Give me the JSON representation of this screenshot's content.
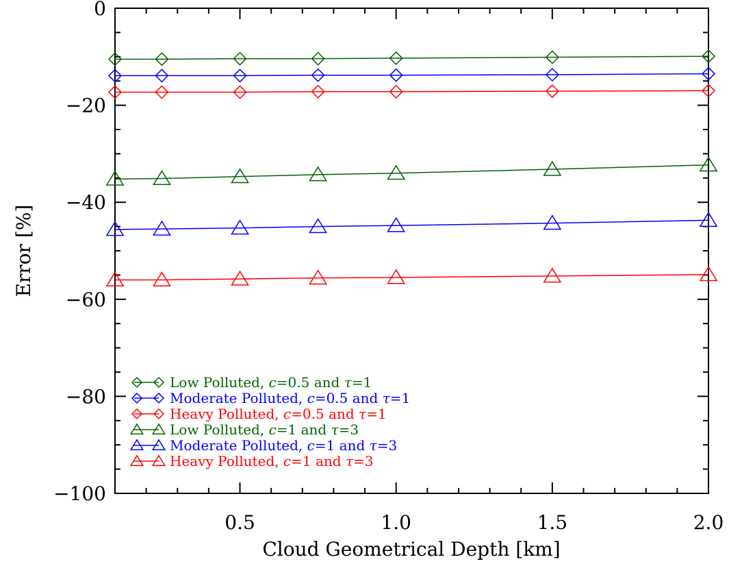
{
  "chart_data": {
    "type": "line",
    "xlabel": "Cloud Geometrical Depth [km]",
    "ylabel": "Error [%]",
    "xlim": [
      0.1,
      2.0
    ],
    "ylim": [
      -100,
      0
    ],
    "x_ticks": [
      "0.5",
      "1.0",
      "1.5",
      "2.0"
    ],
    "y_ticks": [
      "0",
      "−20",
      "−40",
      "−60",
      "−80",
      "−100"
    ],
    "x": [
      0.1,
      0.25,
      0.5,
      0.75,
      1.0,
      1.5,
      2.0
    ],
    "grid": false,
    "legend_position": "bottom-left",
    "series": [
      {
        "name": "Low Polluted, c=0.5 and τ=1",
        "label_pre": "Low Polluted, ",
        "label_mid": "=0.5 and ",
        "label_post": "=1",
        "color": "#006400",
        "marker": "diamond",
        "values": [
          -10.5,
          -10.5,
          -10.4,
          -10.4,
          -10.3,
          -10.1,
          -9.9
        ]
      },
      {
        "name": "Moderate Polluted, c=0.5 and τ=1",
        "label_pre": "Moderate Polluted, ",
        "label_mid": "=0.5 and ",
        "label_post": "=1",
        "color": "#0000ff",
        "marker": "diamond",
        "values": [
          -13.9,
          -13.9,
          -13.9,
          -13.8,
          -13.8,
          -13.7,
          -13.5
        ]
      },
      {
        "name": "Heavy Polluted, c=0.5 and τ=1",
        "label_pre": "Heavy Polluted, ",
        "label_mid": "=0.5 and ",
        "label_post": "=1",
        "color": "#ff0000",
        "marker": "diamond",
        "values": [
          -17.3,
          -17.3,
          -17.3,
          -17.2,
          -17.2,
          -17.1,
          -17.0
        ]
      },
      {
        "name": "Low Polluted, c=1 and τ=3",
        "label_pre": "Low Polluted, ",
        "label_mid": "=1 and ",
        "label_post": "=3",
        "color": "#006400",
        "marker": "triangle",
        "values": [
          -35.2,
          -35.1,
          -34.7,
          -34.3,
          -34.0,
          -33.2,
          -32.3
        ]
      },
      {
        "name": "Moderate Polluted, c=1 and τ=3",
        "label_pre": "Moderate Polluted, ",
        "label_mid": "=1 and ",
        "label_post": "=3",
        "color": "#0000ff",
        "marker": "triangle",
        "values": [
          -45.6,
          -45.5,
          -45.3,
          -45.0,
          -44.8,
          -44.3,
          -43.7
        ]
      },
      {
        "name": "Heavy Polluted, c=1 and τ=3",
        "label_pre": "Heavy Polluted, ",
        "label_mid": "=1 and ",
        "label_post": "=3",
        "color": "#ff0000",
        "marker": "triangle",
        "values": [
          -56.0,
          -56.0,
          -55.8,
          -55.6,
          -55.5,
          -55.2,
          -54.9
        ]
      }
    ]
  }
}
